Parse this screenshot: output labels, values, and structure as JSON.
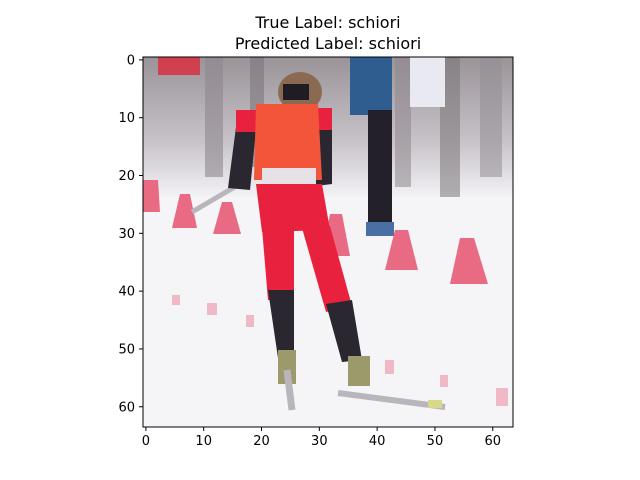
{
  "figure": {
    "title_line1": "True Label: schiori",
    "title_line2": "Predicted Label: schiori"
  },
  "axes": {
    "x_range": [
      0,
      63
    ],
    "y_range": [
      0,
      63
    ],
    "y_inverted": true,
    "x_ticks": [
      "0",
      "10",
      "20",
      "30",
      "40",
      "50",
      "60"
    ],
    "y_ticks": [
      "0",
      "10",
      "20",
      "30",
      "40",
      "50",
      "60"
    ]
  },
  "image": {
    "description_subject": "skier",
    "palette": {
      "snow": "#f5f4f6",
      "suit_red": "#e8213f",
      "vest_orange": "#f2553a",
      "marker_pink": "#e86a83",
      "tree_gray": "#a9a3a8",
      "dark": "#2a2730",
      "spectator_blue": "#2f5d8f",
      "ski_gray": "#b9b5bc"
    }
  }
}
